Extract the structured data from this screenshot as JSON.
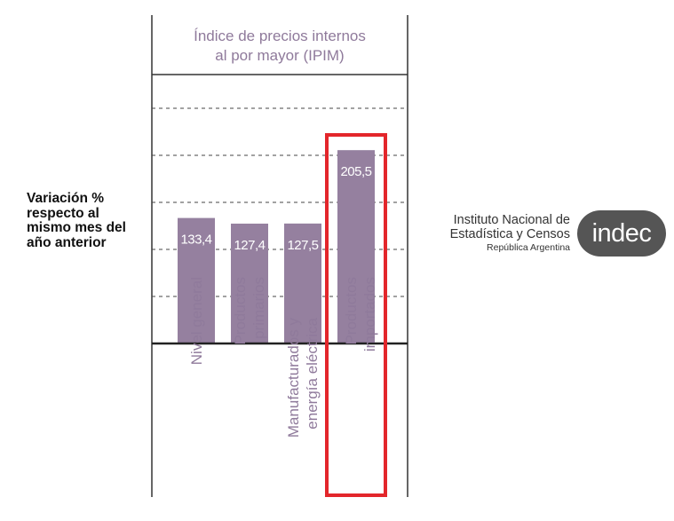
{
  "chart_data": {
    "type": "bar",
    "title_lines": [
      "Índice de precios internos",
      "al por mayor (IPIM)"
    ],
    "ylabel_lines": [
      "Variación %",
      "respecto al",
      "mismo mes del",
      "año anterior"
    ],
    "categories": [
      [
        "Nivel general"
      ],
      [
        "Productos",
        "primarios"
      ],
      [
        "Manufacturados y",
        "energía eléctrica"
      ],
      [
        "Productos",
        "importados"
      ]
    ],
    "values": [
      133.4,
      127.4,
      127.5,
      205.5
    ],
    "value_labels": [
      "133,4",
      "127,4",
      "127,5",
      "205,5"
    ],
    "ylim": [
      0,
      250
    ],
    "gridlines": [
      50,
      100,
      150,
      200,
      250
    ],
    "grid": "dashed-horizontal",
    "bar_color": "#95809f",
    "highlight_index": 3,
    "highlight_color": "#e3262b"
  },
  "logo": {
    "line1": "Instituto Nacional de",
    "line2": "Estadística y Censos",
    "line3": "República Argentina",
    "badge": "indec",
    "badge_color": "#555555"
  }
}
